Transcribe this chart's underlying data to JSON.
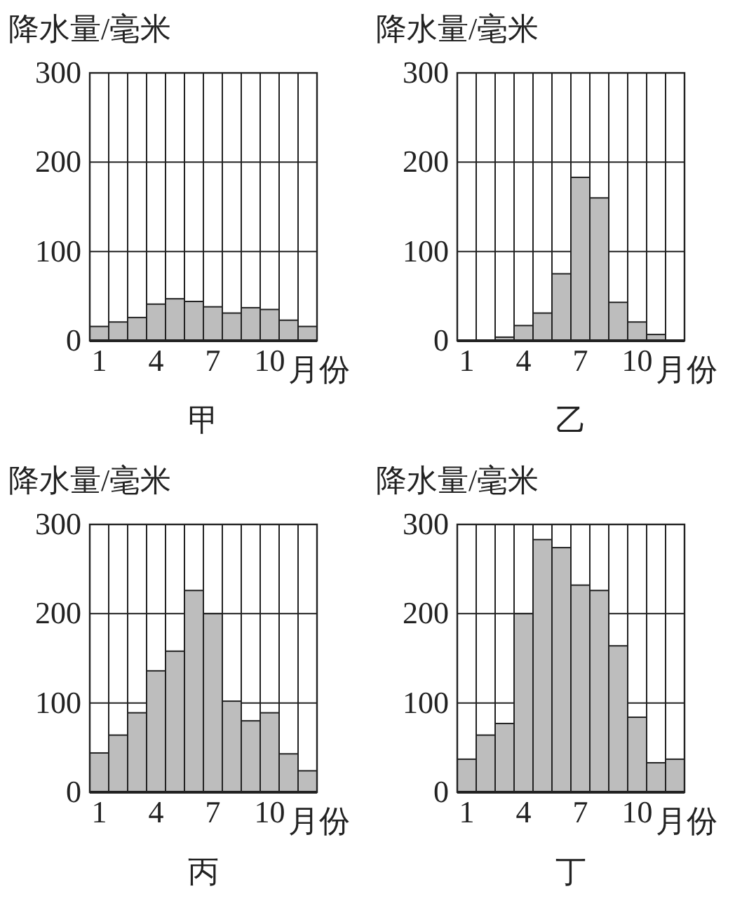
{
  "chart_data": [
    {
      "type": "bar",
      "title": "甲",
      "ylabel": "降水量/毫米",
      "xlabel": "月份",
      "categories": [
        "1",
        null,
        null,
        "4",
        null,
        null,
        "7",
        null,
        null,
        "10",
        null,
        null
      ],
      "values": [
        16,
        21,
        26,
        41,
        47,
        44,
        38,
        31,
        37,
        35,
        23,
        16
      ],
      "color": "#bdbdbd",
      "ylim": [
        0,
        300
      ],
      "yticks": [
        0,
        100,
        200,
        300
      ],
      "grid": true
    },
    {
      "type": "bar",
      "title": "乙",
      "ylabel": "降水量/毫米",
      "xlabel": "月份",
      "categories": [
        "1",
        null,
        null,
        "4",
        null,
        null,
        "7",
        null,
        null,
        "10",
        null,
        null
      ],
      "values": [
        null,
        null,
        4,
        17,
        31,
        75,
        183,
        160,
        43,
        21,
        7,
        null
      ],
      "color": "#bdbdbd",
      "ylim": [
        0,
        300
      ],
      "yticks": [
        0,
        100,
        200,
        300
      ],
      "grid": true
    },
    {
      "type": "bar",
      "title": "丙",
      "ylabel": "降水量/毫米",
      "xlabel": "月份",
      "categories": [
        "1",
        null,
        null,
        "4",
        null,
        null,
        "7",
        null,
        null,
        "10",
        null,
        null
      ],
      "values": [
        44,
        64,
        89,
        136,
        158,
        226,
        200,
        102,
        80,
        89,
        43,
        24
      ],
      "color": "#bdbdbd",
      "ylim": [
        0,
        300
      ],
      "yticks": [
        0,
        100,
        200,
        300
      ],
      "grid": true
    },
    {
      "type": "bar",
      "title": "丁",
      "ylabel": "降水量/毫米",
      "xlabel": "月份",
      "categories": [
        "1",
        null,
        null,
        "4",
        null,
        null,
        "7",
        null,
        null,
        "10",
        null,
        null
      ],
      "values": [
        37,
        64,
        77,
        200,
        283,
        274,
        232,
        226,
        164,
        84,
        33,
        37
      ],
      "color": "#bdbdbd",
      "ylim": [
        0,
        300
      ],
      "yticks": [
        0,
        100,
        200,
        300
      ],
      "grid": true
    }
  ]
}
